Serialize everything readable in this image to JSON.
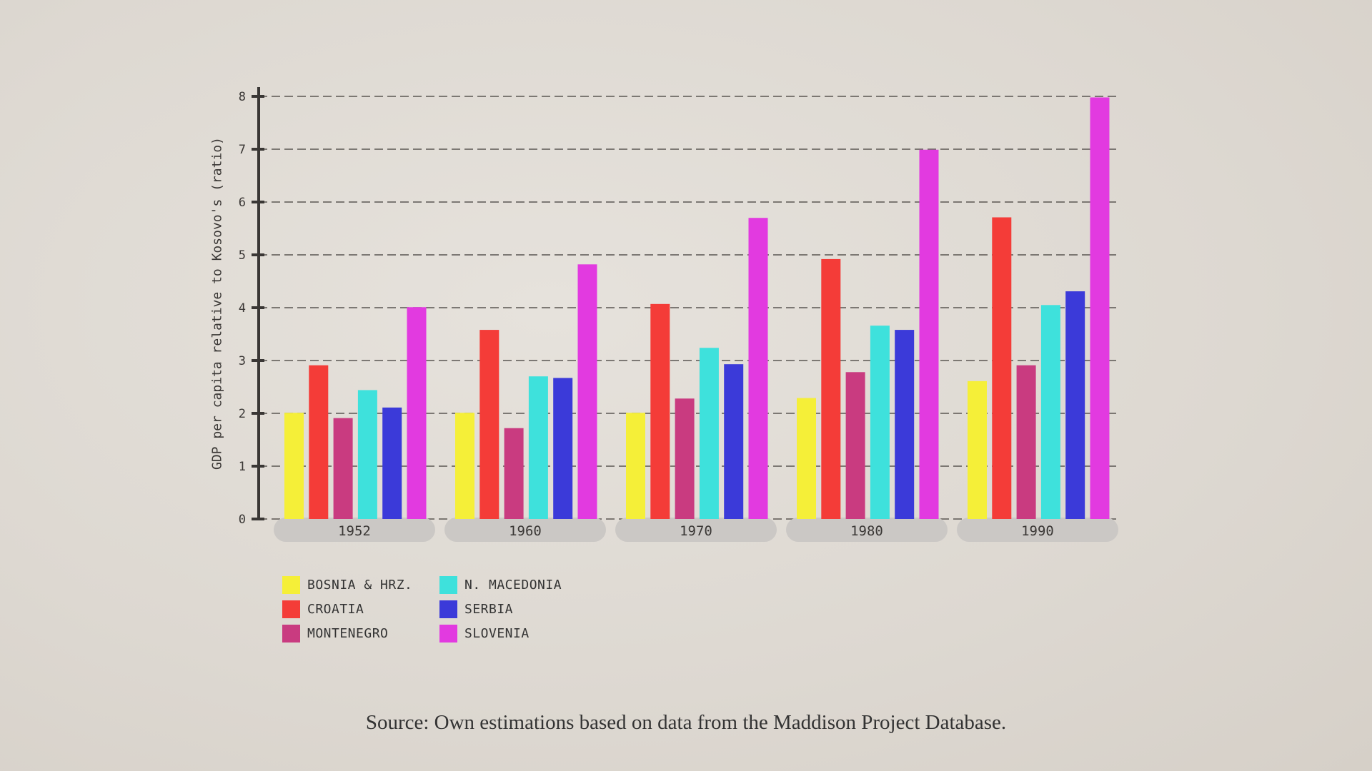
{
  "chart_data": {
    "type": "bar",
    "title": "",
    "xlabel": "",
    "ylabel": "GDP per capita relative to Kosovo's (ratio)",
    "ylim": [
      0,
      8
    ],
    "yticks": [
      "0",
      "1",
      "2",
      "3",
      "4",
      "5",
      "6",
      "7",
      "8"
    ],
    "grid": true,
    "legend_placement": "bottom-left",
    "categories": [
      "1952",
      "1960",
      "1970",
      "1980",
      "1990"
    ],
    "series": [
      {
        "name": "BOSNIA & HRZ.",
        "color": "#f5ef38",
        "values": [
          2.01,
          2.01,
          2.01,
          2.29,
          2.61
        ]
      },
      {
        "name": "CROATIA",
        "color": "#f43c38",
        "values": [
          2.91,
          3.58,
          4.07,
          4.92,
          5.71
        ]
      },
      {
        "name": "MONTENEGRO",
        "color": "#c93b80",
        "values": [
          1.91,
          1.72,
          2.28,
          2.78,
          2.91
        ]
      },
      {
        "name": "N. MACEDONIA",
        "color": "#3ee1dc",
        "values": [
          2.44,
          2.7,
          3.24,
          3.66,
          4.05
        ]
      },
      {
        "name": "SERBIA",
        "color": "#3b3ad9",
        "values": [
          2.11,
          2.67,
          2.93,
          3.58,
          4.31
        ]
      },
      {
        "name": "SLOVENIA",
        "color": "#e23ae0",
        "values": [
          4.01,
          4.82,
          5.7,
          6.99,
          7.98
        ]
      }
    ]
  },
  "source": "Source: Own estimations based on data from the Maddison Project Database."
}
